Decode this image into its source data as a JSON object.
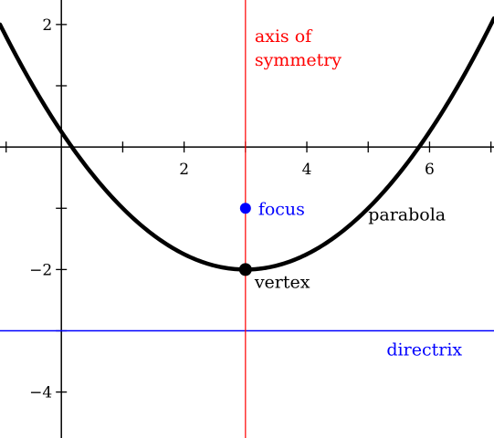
{
  "chart_data": {
    "type": "line",
    "xlim": [
      -1,
      7.05
    ],
    "ylim": [
      -4.75,
      2.4
    ],
    "x_ticks": [
      1,
      2,
      3,
      4,
      5,
      6,
      7
    ],
    "x_tick_labels": [
      {
        "value": 2,
        "label": "2"
      },
      {
        "value": 4,
        "label": "4"
      },
      {
        "value": 6,
        "label": "6"
      }
    ],
    "y_ticks": [
      -4,
      -3,
      -2,
      -1,
      1,
      2
    ],
    "y_tick_labels": [
      {
        "value": 2,
        "label": "2"
      },
      {
        "value": -2,
        "label": "−2"
      },
      {
        "value": -4,
        "label": "−4"
      }
    ],
    "parabola": {
      "a": 0.25,
      "h": 3,
      "k": -2,
      "label": "parabola"
    },
    "axis_of_symmetry": {
      "x": 3,
      "label_line1": "axis of",
      "label_line2": "symmetry"
    },
    "focus": {
      "x": 3,
      "y": -1,
      "label": "focus"
    },
    "vertex": {
      "x": 3,
      "y": -2,
      "label": "vertex"
    },
    "directrix": {
      "y": -3,
      "label": "directrix"
    }
  },
  "colors": {
    "axes": "#000000",
    "curve": "#000000",
    "axis_of_symmetry": "#ff0000",
    "focus": "#0000ff",
    "directrix": "#0000ff",
    "vertex": "#000000",
    "parabola_label": "#000000"
  }
}
